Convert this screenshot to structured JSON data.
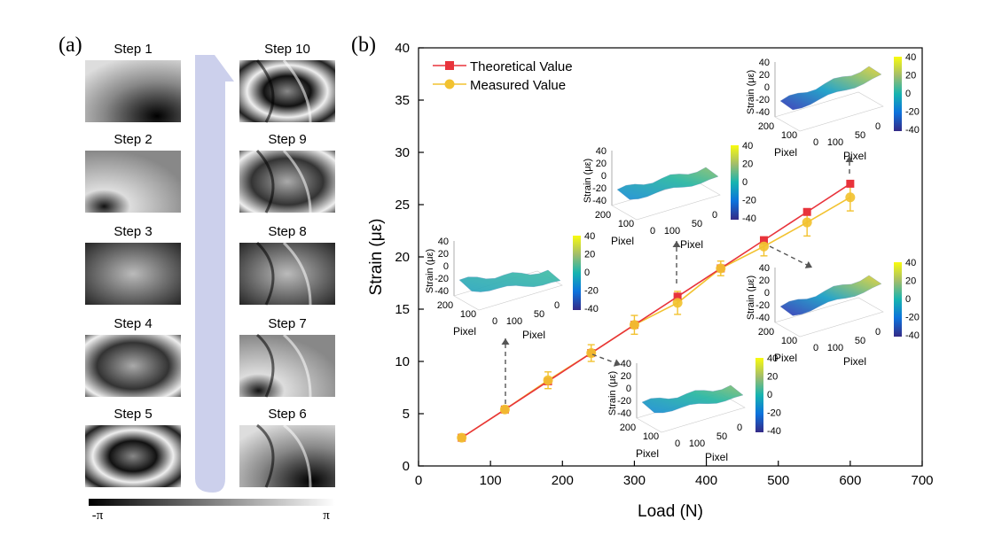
{
  "panel_a": {
    "label": "(a)",
    "steps_left": [
      "Step 1",
      "Step 2",
      "Step 3",
      "Step 4",
      "Step 5"
    ],
    "steps_right": [
      "Step 10",
      "Step 9",
      "Step 8",
      "Step 7",
      "Step 6"
    ],
    "phase_bar": {
      "min_label": "-π",
      "max_label": "π"
    }
  },
  "panel_b": {
    "label": "(b)"
  },
  "colors": {
    "theoretical": "#e8333b",
    "measured": "#f2c230",
    "arrow": "#d0d4ec",
    "axis": "#000000"
  },
  "chart_data": {
    "type": "line",
    "title": "",
    "xlabel": "Load (N)",
    "ylabel": "Strain (με)",
    "xlim": [
      0,
      700
    ],
    "ylim": [
      0,
      40
    ],
    "xticks": [
      0,
      100,
      200,
      300,
      400,
      500,
      600,
      700
    ],
    "yticks": [
      0,
      5,
      10,
      15,
      20,
      25,
      30,
      35,
      40
    ],
    "grid": false,
    "legend_position": "top-left",
    "x": [
      60,
      120,
      180,
      240,
      300,
      360,
      420,
      480,
      540,
      600
    ],
    "series": [
      {
        "name": "Theoretical Value",
        "marker": "square",
        "values": [
          2.7,
          5.4,
          8.1,
          10.8,
          13.5,
          16.2,
          18.9,
          21.6,
          24.3,
          27.0
        ]
      },
      {
        "name": "Measured Value",
        "marker": "circle",
        "values": [
          2.7,
          5.4,
          8.2,
          10.8,
          13.5,
          15.6,
          18.9,
          21.0,
          23.3,
          25.7
        ],
        "errors": [
          0.3,
          0.3,
          0.8,
          0.8,
          0.9,
          1.1,
          0.7,
          0.9,
          1.3,
          1.3
        ]
      }
    ],
    "insets": [
      {
        "anchor_load": 120,
        "z_ticks": [
          40,
          20,
          0,
          -20,
          -40
        ],
        "zlabel": "Strain (με)",
        "x_ticks": [
          100,
          50,
          0
        ],
        "y_ticks": [
          200,
          100,
          0
        ],
        "axis_label": "Pixel",
        "colorbar_ticks": [
          40,
          20,
          0,
          -20,
          -40
        ]
      },
      {
        "anchor_load": 240,
        "z_ticks": [
          40,
          20,
          0,
          -20,
          -40
        ],
        "zlabel": "Strain (με)",
        "x_ticks": [
          100,
          50,
          0
        ],
        "y_ticks": [
          200,
          100,
          0
        ],
        "axis_label": "Pixel",
        "colorbar_ticks": [
          40,
          20,
          0,
          -20,
          -40
        ]
      },
      {
        "anchor_load": 360,
        "z_ticks": [
          40,
          20,
          0,
          -20,
          -40
        ],
        "zlabel": "Strain (με)",
        "x_ticks": [
          100,
          50,
          0
        ],
        "y_ticks": [
          200,
          100,
          0
        ],
        "axis_label": "Pixel",
        "colorbar_ticks": [
          40,
          20,
          0,
          -20,
          -40
        ]
      },
      {
        "anchor_load": 480,
        "z_ticks": [
          40,
          20,
          0,
          -20,
          -40
        ],
        "zlabel": "Strain (με)",
        "x_ticks": [
          100,
          50,
          0
        ],
        "y_ticks": [
          200,
          100,
          0
        ],
        "axis_label": "Pixel",
        "colorbar_ticks": [
          40,
          20,
          0,
          -20,
          -40
        ]
      },
      {
        "anchor_load": 600,
        "z_ticks": [
          40,
          20,
          0,
          -20,
          -40
        ],
        "zlabel": "Strain (με)",
        "x_ticks": [
          100,
          50,
          0
        ],
        "y_ticks": [
          200,
          100,
          0
        ],
        "axis_label": "Pixel",
        "colorbar_ticks": [
          40,
          20,
          0,
          -20,
          -40
        ]
      }
    ]
  }
}
